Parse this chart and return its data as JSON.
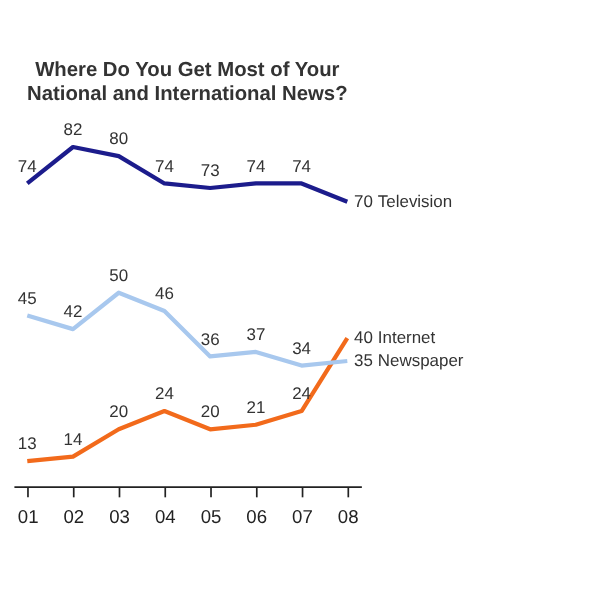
{
  "chart_data": {
    "type": "line",
    "title": [
      "Where Do You Get Most of Your",
      "National and International News?"
    ],
    "categories": [
      "01",
      "02",
      "03",
      "04",
      "05",
      "06",
      "07",
      "08"
    ],
    "series": [
      {
        "name": "Television",
        "color": "#1c1c8c",
        "values": [
          74,
          82,
          80,
          74,
          73,
          74,
          74,
          70
        ]
      },
      {
        "name": "Internet",
        "color": "#f26a1b",
        "values": [
          13,
          14,
          20,
          24,
          20,
          21,
          24,
          40
        ]
      },
      {
        "name": "Newspaper",
        "color": "#a8c8ee",
        "values": [
          45,
          42,
          50,
          46,
          36,
          37,
          34,
          35
        ]
      }
    ],
    "data_labels": true,
    "grid": false,
    "legend": false,
    "line_style": "solid"
  }
}
